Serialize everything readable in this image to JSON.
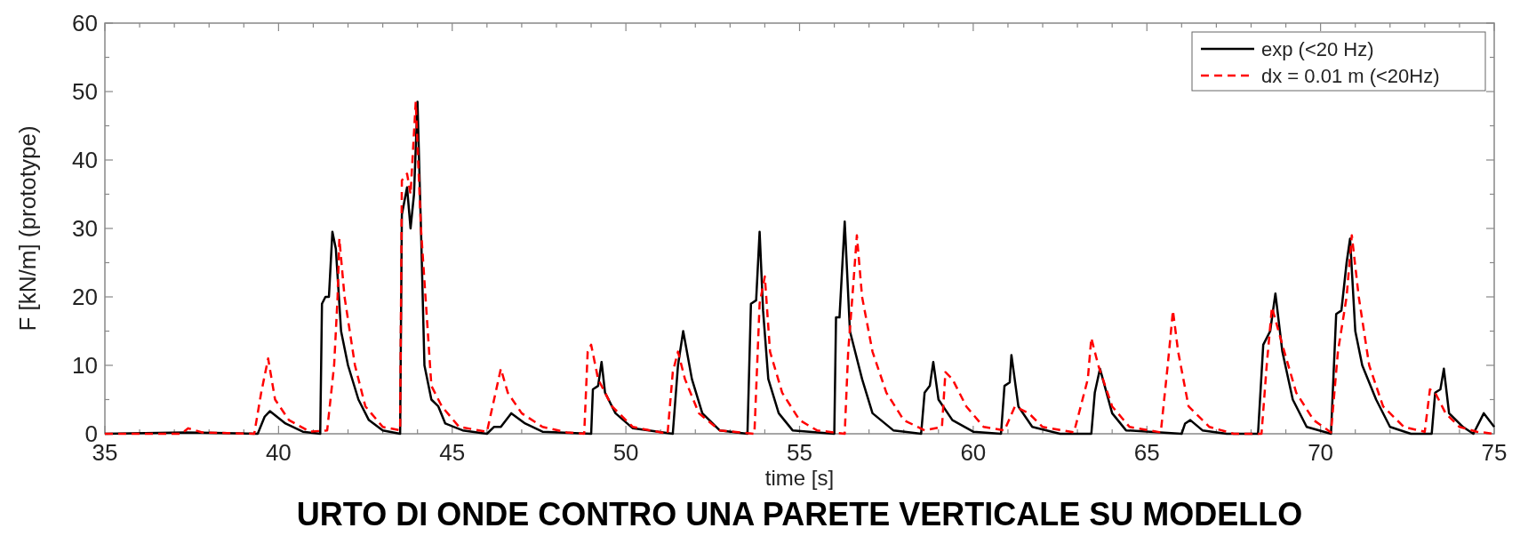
{
  "chart_data": {
    "type": "line",
    "xlabel": "time [s]",
    "ylabel": "F [kN/m] (prototype)",
    "annotations": [
      "URTO DI ONDE CONTRO UNA PARETE VERTICALE SU MODELLO"
    ],
    "xlim": [
      35,
      75
    ],
    "ylim": [
      0,
      60
    ],
    "xticks": [
      35,
      {
        "value": 36,
        "label": null
      },
      {
        "value": 37,
        "label": null
      },
      {
        "value": 38,
        "label": null
      },
      {
        "value": 39,
        "label": null
      },
      40,
      {
        "value": 41,
        "label": null
      },
      {
        "value": 42,
        "label": null
      },
      {
        "value": 43,
        "label": null
      },
      {
        "value": 44,
        "label": null
      },
      45,
      {
        "value": 46,
        "label": null
      },
      {
        "value": 47,
        "label": null
      },
      {
        "value": 48,
        "label": null
      },
      {
        "value": 49,
        "label": null
      },
      50,
      {
        "value": 51,
        "label": null
      },
      {
        "value": 52,
        "label": null
      },
      {
        "value": 53,
        "label": null
      },
      {
        "value": 54,
        "label": null
      },
      55,
      {
        "value": 56,
        "label": null
      },
      {
        "value": 57,
        "label": null
      },
      {
        "value": 58,
        "label": null
      },
      {
        "value": 59,
        "label": null
      },
      60,
      {
        "value": 61,
        "label": null
      },
      {
        "value": 62,
        "label": null
      },
      {
        "value": 63,
        "label": null
      },
      {
        "value": 64,
        "label": null
      },
      65,
      {
        "value": 66,
        "label": null
      },
      {
        "value": 67,
        "label": null
      },
      {
        "value": 68,
        "label": null
      },
      {
        "value": 69,
        "label": null
      },
      70,
      {
        "value": 71,
        "label": null
      },
      {
        "value": 72,
        "label": null
      },
      {
        "value": 73,
        "label": null
      },
      {
        "value": 74,
        "label": null
      },
      75
    ],
    "yticks": [
      0,
      {
        "value": 5,
        "label": null
      },
      10,
      {
        "value": 15,
        "label": null
      },
      20,
      {
        "value": 25,
        "label": null
      },
      30,
      {
        "value": 35,
        "label": null
      },
      40,
      {
        "value": 45,
        "label": null
      },
      50,
      {
        "value": 55,
        "label": null
      },
      60
    ],
    "grid": false,
    "legend": "top right",
    "series": [
      {
        "name": "exp (<20 Hz)",
        "color": "#000000",
        "line_style": "solid",
        "x": [
          35,
          37.3,
          39.4,
          39.6,
          39.75,
          40.2,
          40.7,
          41.2,
          41.25,
          41.35,
          41.45,
          41.55,
          41.65,
          41.8,
          42,
          42.3,
          42.6,
          43,
          43.5,
          43.55,
          43.7,
          43.8,
          43.9,
          44.0,
          44.1,
          44.2,
          44.4,
          44.6,
          44.8,
          45.3,
          46,
          46.2,
          46.4,
          46.7,
          47.1,
          47.6,
          49.0,
          49.05,
          49.2,
          49.3,
          49.4,
          49.7,
          50.2,
          51.35,
          51.5,
          51.65,
          51.9,
          52.2,
          52.7,
          53.5,
          53.6,
          53.75,
          53.85,
          53.95,
          54.1,
          54.4,
          54.8,
          56.0,
          56.05,
          56.15,
          56.3,
          56.45,
          56.8,
          57.1,
          57.7,
          58.5,
          58.6,
          58.75,
          58.85,
          59.0,
          59.4,
          60,
          60.8,
          60.9,
          61.05,
          61.1,
          61.3,
          61.7,
          62.5,
          63.4,
          63.5,
          63.65,
          64,
          64.4,
          66,
          66.1,
          66.25,
          66.6,
          67.3,
          68.2,
          68.35,
          68.55,
          68.7,
          68.9,
          69.2,
          69.6,
          70.3,
          70.45,
          70.6,
          70.75,
          70.85,
          71,
          71.2,
          71.6,
          72,
          72.6,
          73.2,
          73.3,
          73.45,
          73.55,
          73.7,
          74.1,
          74.4,
          74.7,
          75
        ],
        "values": [
          0,
          0.2,
          0,
          2.5,
          3.3,
          1.5,
          0.3,
          0,
          19,
          20,
          20,
          29.5,
          27,
          15,
          10,
          5,
          2,
          0.5,
          0,
          32,
          36,
          30,
          35,
          48.5,
          30,
          10,
          5,
          4,
          1.5,
          0.5,
          0,
          1,
          1,
          3,
          1.5,
          0.3,
          0,
          6.5,
          7,
          10.5,
          6,
          3,
          0.8,
          0,
          10,
          15,
          8,
          3,
          0.5,
          0,
          19,
          19.5,
          29.5,
          18,
          8,
          3,
          0.5,
          0,
          17,
          17,
          31,
          15,
          8,
          3,
          0.5,
          0,
          6,
          7,
          10.5,
          5,
          2,
          0.3,
          0,
          7,
          7.5,
          11.5,
          4,
          1,
          0,
          0,
          6,
          9.5,
          3,
          0.5,
          0,
          1.5,
          2,
          0.5,
          0,
          0,
          13,
          15,
          20.5,
          12,
          5,
          1,
          0,
          17.5,
          18,
          25,
          28.5,
          15,
          10,
          5,
          1,
          0,
          0,
          6,
          6.5,
          9.5,
          3,
          1,
          0,
          3,
          1
        ]
      },
      {
        "name": "dx = 0.01 m (<20Hz)",
        "color": "#ff0000",
        "line_style": "dashed",
        "x": [
          35,
          37.2,
          37.4,
          37.8,
          39.3,
          39.5,
          39.7,
          39.9,
          40.3,
          40.9,
          41.4,
          41.6,
          41.7,
          41.75,
          41.9,
          42.2,
          42.5,
          43,
          43.5,
          43.55,
          43.7,
          43.8,
          43.95,
          44.1,
          44.4,
          44.7,
          45.2,
          46,
          46.4,
          46.6,
          47,
          47.6,
          48.3,
          48.8,
          48.9,
          49.0,
          49.2,
          49.6,
          50.2,
          51.2,
          51.35,
          51.5,
          51.7,
          52.1,
          52.7,
          53.7,
          53.85,
          54.0,
          54.15,
          54.5,
          55,
          55.5,
          56.3,
          56.4,
          56.55,
          56.65,
          56.8,
          57.1,
          57.5,
          58,
          58.6,
          59.1,
          59.2,
          59.4,
          59.8,
          60.3,
          60.9,
          61.2,
          61.6,
          62,
          62.9,
          63.3,
          63.4,
          63.6,
          64,
          64.5,
          65.4,
          65.6,
          65.75,
          65.9,
          66.2,
          66.8,
          67.5,
          68.3,
          68.45,
          68.6,
          68.9,
          69.3,
          69.8,
          70.3,
          70.5,
          70.75,
          70.9,
          71.1,
          71.4,
          71.8,
          72.4,
          73,
          73.15,
          73.3,
          73.6,
          74,
          74.5,
          75
        ],
        "values": [
          0,
          0,
          0.8,
          0.2,
          0,
          6,
          11,
          5,
          2,
          0.3,
          0.5,
          10,
          20,
          28.5,
          20,
          10,
          4,
          1,
          0.5,
          37,
          38,
          35,
          48.5,
          30,
          7,
          4,
          1,
          0.3,
          9.5,
          6,
          3,
          1,
          0.2,
          0,
          12,
          13,
          8,
          4,
          1,
          0,
          9,
          12,
          8,
          3,
          0.5,
          0,
          19,
          23,
          12,
          6,
          2,
          0.5,
          0,
          12,
          22,
          29,
          20,
          12,
          6,
          2,
          0.5,
          1,
          9,
          8,
          4,
          1,
          0.5,
          4,
          3,
          1,
          0.2,
          8,
          14,
          10,
          4,
          1,
          0.2,
          10,
          18,
          12,
          4,
          1,
          0,
          0,
          10,
          18.5,
          13,
          6,
          2,
          0.2,
          12,
          20,
          29,
          20,
          10,
          4,
          1,
          0.3,
          6.5,
          6,
          3,
          1,
          0.3,
          0
        ]
      }
    ]
  }
}
